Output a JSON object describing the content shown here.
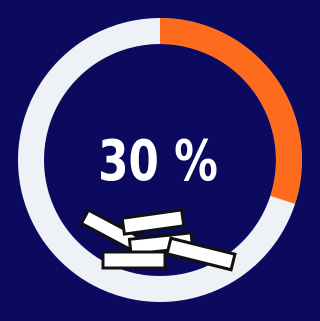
{
  "chart_data": {
    "type": "donut",
    "values": [
      30
    ],
    "value_labels": [
      "30 %"
    ],
    "color": "#ff6b1c",
    "track_color": "#eef1f6",
    "max": 100
  }
}
